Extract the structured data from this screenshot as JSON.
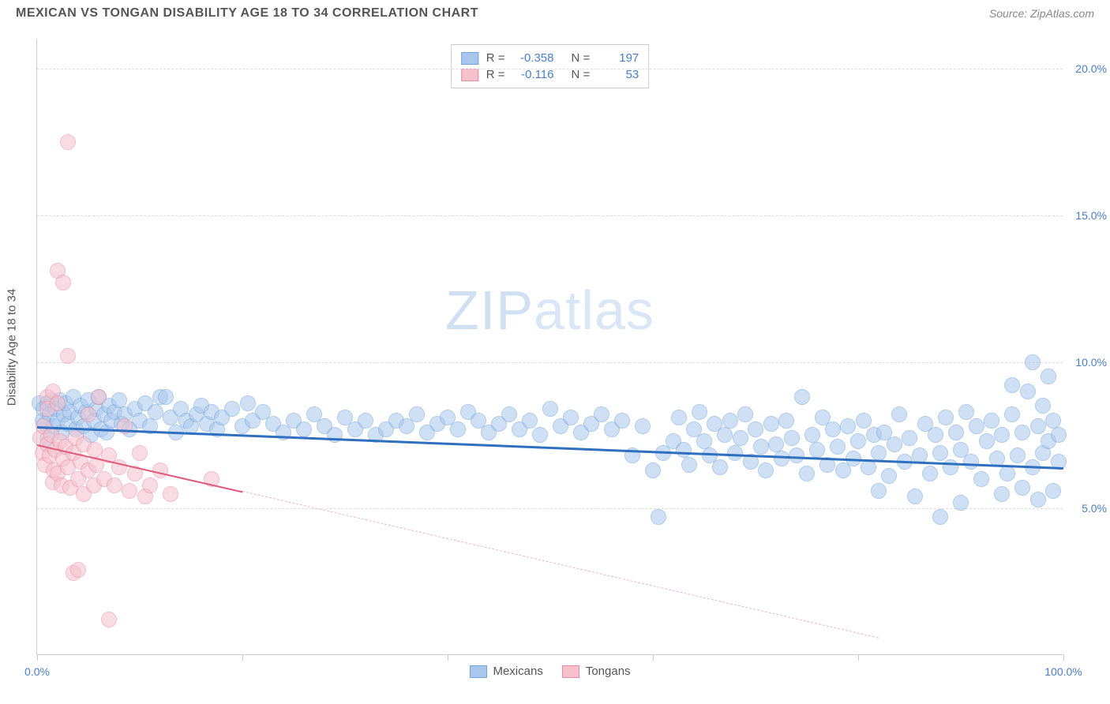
{
  "header": {
    "title": "MEXICAN VS TONGAN DISABILITY AGE 18 TO 34 CORRELATION CHART",
    "source": "Source: ZipAtlas.com"
  },
  "watermark": {
    "part1": "ZIP",
    "part2": "atlas"
  },
  "chart": {
    "type": "scatter",
    "background_color": "#ffffff",
    "grid_color": "#dddddd",
    "axis_color": "#cccccc",
    "xlim": [
      0,
      100
    ],
    "ylim": [
      0,
      21
    ],
    "yticks": [
      {
        "v": 5,
        "label": "5.0%"
      },
      {
        "v": 10,
        "label": "10.0%"
      },
      {
        "v": 15,
        "label": "15.0%"
      },
      {
        "v": 20,
        "label": "20.0%"
      }
    ],
    "xtick_positions": [
      0,
      20,
      40,
      60,
      80,
      100
    ],
    "xtick_labels": {
      "start": "0.0%",
      "end": "100.0%"
    },
    "yaxis_title": "Disability Age 18 to 34",
    "tick_label_color": "#4a7ec9",
    "tick_label_fontsize": 14,
    "axis_title_color": "#555555",
    "axis_title_fontsize": 15,
    "marker_radius": 10,
    "marker_opacity": 0.55,
    "series": [
      {
        "name": "Mexicans",
        "fill_color": "#a9c7ec",
        "stroke_color": "#6fa3dd",
        "R": "-0.358",
        "N": "197",
        "trend": {
          "x1": 0,
          "y1": 7.8,
          "x2": 100,
          "y2": 6.4,
          "color": "#2f6fc0",
          "width": 3,
          "dash": "solid"
        },
        "points": [
          [
            0.2,
            8.6
          ],
          [
            0.5,
            8.0
          ],
          [
            0.6,
            8.4
          ],
          [
            0.8,
            7.9
          ],
          [
            1.0,
            8.6
          ],
          [
            1.0,
            7.4
          ],
          [
            1.2,
            8.2
          ],
          [
            1.4,
            8.7
          ],
          [
            1.6,
            7.8
          ],
          [
            1.8,
            8.4
          ],
          [
            2.0,
            8.0
          ],
          [
            2.2,
            8.7
          ],
          [
            2.4,
            7.6
          ],
          [
            2.6,
            8.2
          ],
          [
            2.8,
            8.6
          ],
          [
            3.0,
            7.9
          ],
          [
            3.2,
            8.3
          ],
          [
            3.5,
            8.8
          ],
          [
            3.8,
            7.7
          ],
          [
            4.0,
            8.1
          ],
          [
            4.2,
            8.5
          ],
          [
            4.5,
            7.8
          ],
          [
            4.8,
            8.3
          ],
          [
            5.0,
            8.7
          ],
          [
            5.2,
            7.5
          ],
          [
            5.5,
            8.0
          ],
          [
            5.8,
            8.4
          ],
          [
            6.0,
            8.8
          ],
          [
            6.2,
            7.7
          ],
          [
            6.5,
            8.2
          ],
          [
            6.8,
            7.6
          ],
          [
            7.0,
            8.5
          ],
          [
            7.2,
            8.0
          ],
          [
            7.5,
            8.3
          ],
          [
            8.0,
            8.7
          ],
          [
            8.2,
            7.9
          ],
          [
            8.5,
            8.2
          ],
          [
            9.0,
            7.7
          ],
          [
            9.5,
            8.4
          ],
          [
            10.0,
            8.0
          ],
          [
            10.5,
            8.6
          ],
          [
            11.0,
            7.8
          ],
          [
            11.5,
            8.3
          ],
          [
            12.0,
            8.8
          ],
          [
            12.5,
            8.8
          ],
          [
            13.0,
            8.1
          ],
          [
            13.5,
            7.6
          ],
          [
            14.0,
            8.4
          ],
          [
            14.5,
            8.0
          ],
          [
            15.0,
            7.8
          ],
          [
            15.5,
            8.2
          ],
          [
            16.0,
            8.5
          ],
          [
            16.5,
            7.9
          ],
          [
            17.0,
            8.3
          ],
          [
            17.5,
            7.7
          ],
          [
            18.0,
            8.1
          ],
          [
            19.0,
            8.4
          ],
          [
            20.0,
            7.8
          ],
          [
            20.5,
            8.6
          ],
          [
            21.0,
            8.0
          ],
          [
            22.0,
            8.3
          ],
          [
            23.0,
            7.9
          ],
          [
            24.0,
            7.6
          ],
          [
            25.0,
            8.0
          ],
          [
            26.0,
            7.7
          ],
          [
            27.0,
            8.2
          ],
          [
            28.0,
            7.8
          ],
          [
            29.0,
            7.5
          ],
          [
            30.0,
            8.1
          ],
          [
            31.0,
            7.7
          ],
          [
            32.0,
            8.0
          ],
          [
            33.0,
            7.5
          ],
          [
            34.0,
            7.7
          ],
          [
            35.0,
            8.0
          ],
          [
            36.0,
            7.8
          ],
          [
            37.0,
            8.2
          ],
          [
            38.0,
            7.6
          ],
          [
            39.0,
            7.9
          ],
          [
            40.0,
            8.1
          ],
          [
            41.0,
            7.7
          ],
          [
            42.0,
            8.3
          ],
          [
            43.0,
            8.0
          ],
          [
            44.0,
            7.6
          ],
          [
            45.0,
            7.9
          ],
          [
            46.0,
            8.2
          ],
          [
            47.0,
            7.7
          ],
          [
            48.0,
            8.0
          ],
          [
            49.0,
            7.5
          ],
          [
            50.0,
            8.4
          ],
          [
            51.0,
            7.8
          ],
          [
            52.0,
            8.1
          ],
          [
            53.0,
            7.6
          ],
          [
            54.0,
            7.9
          ],
          [
            55.0,
            8.2
          ],
          [
            56.0,
            7.7
          ],
          [
            57.0,
            8.0
          ],
          [
            58.0,
            6.8
          ],
          [
            59.0,
            7.8
          ],
          [
            60.0,
            6.3
          ],
          [
            61.0,
            6.9
          ],
          [
            60.5,
            4.7
          ],
          [
            62.0,
            7.3
          ],
          [
            62.5,
            8.1
          ],
          [
            63.0,
            7.0
          ],
          [
            63.5,
            6.5
          ],
          [
            64.0,
            7.7
          ],
          [
            64.5,
            8.3
          ],
          [
            65.0,
            7.3
          ],
          [
            65.5,
            6.8
          ],
          [
            66.0,
            7.9
          ],
          [
            66.5,
            6.4
          ],
          [
            67.0,
            7.5
          ],
          [
            67.5,
            8.0
          ],
          [
            68.0,
            6.9
          ],
          [
            68.5,
            7.4
          ],
          [
            69.0,
            8.2
          ],
          [
            69.5,
            6.6
          ],
          [
            70.0,
            7.7
          ],
          [
            70.5,
            7.1
          ],
          [
            71.0,
            6.3
          ],
          [
            71.5,
            7.9
          ],
          [
            72.0,
            7.2
          ],
          [
            72.5,
            6.7
          ],
          [
            73.0,
            8.0
          ],
          [
            73.5,
            7.4
          ],
          [
            74.0,
            6.8
          ],
          [
            74.5,
            8.8
          ],
          [
            75.0,
            6.2
          ],
          [
            75.5,
            7.5
          ],
          [
            76.0,
            7.0
          ],
          [
            76.5,
            8.1
          ],
          [
            77.0,
            6.5
          ],
          [
            77.5,
            7.7
          ],
          [
            78.0,
            7.1
          ],
          [
            78.5,
            6.3
          ],
          [
            79.0,
            7.8
          ],
          [
            79.5,
            6.7
          ],
          [
            80.0,
            7.3
          ],
          [
            80.5,
            8.0
          ],
          [
            81.0,
            6.4
          ],
          [
            81.5,
            7.5
          ],
          [
            82.0,
            5.6
          ],
          [
            82.0,
            6.9
          ],
          [
            82.5,
            7.6
          ],
          [
            83.0,
            6.1
          ],
          [
            83.5,
            7.2
          ],
          [
            84.0,
            8.2
          ],
          [
            84.5,
            6.6
          ],
          [
            85.0,
            7.4
          ],
          [
            85.5,
            5.4
          ],
          [
            86.0,
            6.8
          ],
          [
            86.5,
            7.9
          ],
          [
            87.0,
            6.2
          ],
          [
            87.5,
            7.5
          ],
          [
            88.0,
            4.7
          ],
          [
            88.0,
            6.9
          ],
          [
            88.5,
            8.1
          ],
          [
            89.0,
            6.4
          ],
          [
            89.5,
            7.6
          ],
          [
            90.0,
            5.2
          ],
          [
            90.0,
            7.0
          ],
          [
            90.5,
            8.3
          ],
          [
            91.0,
            6.6
          ],
          [
            91.5,
            7.8
          ],
          [
            92.0,
            6.0
          ],
          [
            92.5,
            7.3
          ],
          [
            93.0,
            8.0
          ],
          [
            93.5,
            6.7
          ],
          [
            94.0,
            5.5
          ],
          [
            94.0,
            7.5
          ],
          [
            94.5,
            6.2
          ],
          [
            95.0,
            8.2
          ],
          [
            95.0,
            9.2
          ],
          [
            95.5,
            6.8
          ],
          [
            96.0,
            7.6
          ],
          [
            96.0,
            5.7
          ],
          [
            96.5,
            9.0
          ],
          [
            97.0,
            6.4
          ],
          [
            97.0,
            10.0
          ],
          [
            97.5,
            7.8
          ],
          [
            97.5,
            5.3
          ],
          [
            98.0,
            6.9
          ],
          [
            98.0,
            8.5
          ],
          [
            98.5,
            7.3
          ],
          [
            98.5,
            9.5
          ],
          [
            99.0,
            5.6
          ],
          [
            99.0,
            8.0
          ],
          [
            99.5,
            6.6
          ],
          [
            99.5,
            7.5
          ]
        ]
      },
      {
        "name": "Tongans",
        "fill_color": "#f5c1cd",
        "stroke_color": "#ec8aa2",
        "R": "-0.116",
        "N": "53",
        "trend_solid": {
          "x1": 0,
          "y1": 7.2,
          "x2": 20,
          "y2": 5.6,
          "color": "#e05a7c",
          "width": 2.5,
          "dash": "solid"
        },
        "trend_dashed": {
          "x1": 20,
          "y1": 5.6,
          "x2": 82,
          "y2": 0.6,
          "color": "#f0b7c4",
          "width": 1.5,
          "dash": "dashed"
        },
        "points": [
          [
            0.3,
            7.4
          ],
          [
            0.5,
            6.9
          ],
          [
            0.6,
            7.8
          ],
          [
            0.8,
            6.5
          ],
          [
            1.0,
            7.2
          ],
          [
            1.0,
            8.8
          ],
          [
            1.0,
            8.4
          ],
          [
            1.2,
            6.8
          ],
          [
            1.4,
            7.5
          ],
          [
            1.5,
            9.0
          ],
          [
            1.5,
            5.9
          ],
          [
            1.6,
            6.3
          ],
          [
            1.8,
            7.0
          ],
          [
            2.0,
            8.6
          ],
          [
            2.0,
            6.2
          ],
          [
            2.0,
            13.1
          ],
          [
            2.2,
            7.3
          ],
          [
            2.4,
            5.8
          ],
          [
            2.5,
            6.7
          ],
          [
            2.5,
            12.7
          ],
          [
            2.8,
            7.1
          ],
          [
            3.0,
            6.4
          ],
          [
            3.0,
            10.2
          ],
          [
            3.0,
            17.5
          ],
          [
            3.2,
            5.7
          ],
          [
            3.5,
            6.9
          ],
          [
            3.5,
            2.8
          ],
          [
            3.8,
            7.4
          ],
          [
            4.0,
            6.0
          ],
          [
            4.0,
            2.9
          ],
          [
            4.2,
            6.6
          ],
          [
            4.5,
            5.5
          ],
          [
            4.5,
            7.2
          ],
          [
            5.0,
            6.3
          ],
          [
            5.0,
            8.2
          ],
          [
            5.5,
            5.8
          ],
          [
            5.6,
            7.0
          ],
          [
            5.8,
            6.5
          ],
          [
            6.0,
            8.8
          ],
          [
            6.5,
            6.0
          ],
          [
            7.0,
            6.8
          ],
          [
            7.0,
            1.2
          ],
          [
            7.5,
            5.8
          ],
          [
            8.0,
            6.4
          ],
          [
            8.5,
            7.8
          ],
          [
            9.0,
            5.6
          ],
          [
            9.5,
            6.2
          ],
          [
            10.0,
            6.9
          ],
          [
            10.5,
            5.4
          ],
          [
            11.0,
            5.8
          ],
          [
            12.0,
            6.3
          ],
          [
            13.0,
            5.5
          ],
          [
            17.0,
            6.0
          ]
        ]
      }
    ]
  },
  "legend_top": {
    "label_R": "R =",
    "label_N": "N ="
  },
  "legend_bottom": {
    "items": [
      {
        "label": "Mexicans",
        "fill": "#a9c7ec",
        "stroke": "#6fa3dd"
      },
      {
        "label": "Tongans",
        "fill": "#f5c1cd",
        "stroke": "#ec8aa2"
      }
    ]
  }
}
